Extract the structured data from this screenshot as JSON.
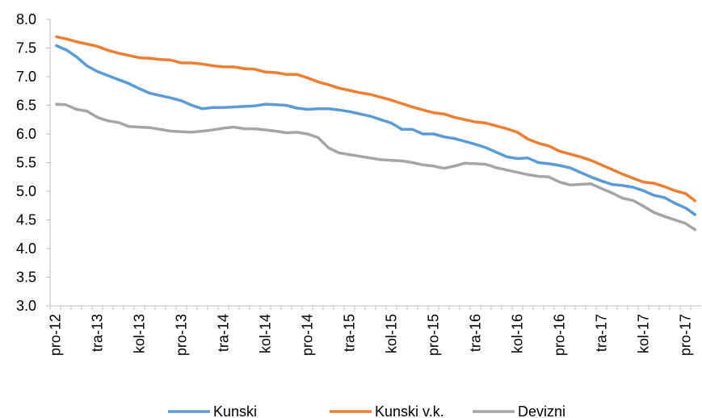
{
  "chart_data": {
    "type": "line",
    "categories": [
      "pro-12",
      null,
      null,
      null,
      "tra-13",
      null,
      null,
      null,
      "kol-13",
      null,
      null,
      null,
      "pro-13",
      null,
      null,
      null,
      "tra-14",
      null,
      null,
      null,
      "kol-14",
      null,
      null,
      null,
      "pro-14",
      null,
      null,
      null,
      "tra-15",
      null,
      null,
      null,
      "kol-15",
      null,
      null,
      null,
      "pro-15",
      null,
      null,
      null,
      "tra-16",
      null,
      null,
      null,
      "kol-16",
      null,
      null,
      null,
      "pro-16",
      null,
      null,
      null,
      "tra-17",
      null,
      null,
      null,
      "kol-17",
      null,
      null,
      null,
      "pro-17",
      null
    ],
    "series": [
      {
        "name": "Kunski",
        "color": "#5b9bd5",
        "values": [
          7.55,
          7.47,
          7.35,
          7.19,
          7.09,
          7.02,
          6.95,
          6.88,
          6.79,
          6.71,
          6.67,
          6.63,
          6.58,
          6.5,
          6.44,
          6.46,
          6.46,
          6.47,
          6.48,
          6.49,
          6.52,
          6.51,
          6.5,
          6.45,
          6.43,
          6.44,
          6.44,
          6.42,
          6.39,
          6.35,
          6.31,
          6.25,
          6.19,
          6.08,
          6.08,
          6.0,
          6.0,
          5.95,
          5.92,
          5.87,
          5.82,
          5.76,
          5.68,
          5.6,
          5.57,
          5.58,
          5.5,
          5.48,
          5.45,
          5.41,
          5.33,
          5.25,
          5.18,
          5.12,
          5.1,
          5.07,
          5.01,
          4.93,
          4.89,
          4.79,
          4.71,
          4.58
        ]
      },
      {
        "name": "Kunski v.k.",
        "color": "#ed7d31",
        "values": [
          7.7,
          7.66,
          7.61,
          7.57,
          7.53,
          7.46,
          7.41,
          7.37,
          7.33,
          7.32,
          7.3,
          7.29,
          7.24,
          7.24,
          7.22,
          7.19,
          7.17,
          7.17,
          7.14,
          7.13,
          7.08,
          7.07,
          7.04,
          7.04,
          6.98,
          6.91,
          6.86,
          6.8,
          6.76,
          6.72,
          6.69,
          6.64,
          6.59,
          6.53,
          6.47,
          6.42,
          6.37,
          6.35,
          6.29,
          6.25,
          6.21,
          6.19,
          6.14,
          6.09,
          6.03,
          5.91,
          5.84,
          5.79,
          5.7,
          5.65,
          5.6,
          5.54,
          5.46,
          5.38,
          5.3,
          5.23,
          5.16,
          5.14,
          5.08,
          5.01,
          4.96,
          4.82
        ]
      },
      {
        "name": "Devizni",
        "color": "#a5a5a5",
        "values": [
          6.52,
          6.51,
          6.43,
          6.4,
          6.29,
          6.23,
          6.2,
          6.13,
          6.12,
          6.11,
          6.08,
          6.05,
          6.04,
          6.03,
          6.05,
          6.07,
          6.1,
          6.12,
          6.09,
          6.09,
          6.07,
          6.05,
          6.02,
          6.03,
          6.0,
          5.94,
          5.76,
          5.67,
          5.64,
          5.61,
          5.58,
          5.55,
          5.54,
          5.53,
          5.5,
          5.46,
          5.44,
          5.4,
          5.44,
          5.49,
          5.48,
          5.47,
          5.41,
          5.37,
          5.33,
          5.29,
          5.26,
          5.25,
          5.16,
          5.11,
          5.12,
          5.13,
          5.05,
          4.97,
          4.88,
          4.84,
          4.74,
          4.63,
          4.56,
          4.5,
          4.44,
          4.32
        ]
      }
    ],
    "ylim": [
      3.0,
      8.0
    ],
    "yticks": [
      {
        "value": 3.0,
        "label": "3.0"
      },
      3.5,
      {
        "value": 4.0,
        "label": "4.0"
      },
      4.5,
      {
        "value": 5.0,
        "label": "5.0"
      },
      5.5,
      {
        "value": 6.0,
        "label": "6.0"
      },
      6.5,
      {
        "value": 7.0,
        "label": "7.0"
      },
      7.5,
      {
        "value": 8.0,
        "label": "8.0"
      }
    ],
    "grid": false,
    "legend": "bottom"
  }
}
